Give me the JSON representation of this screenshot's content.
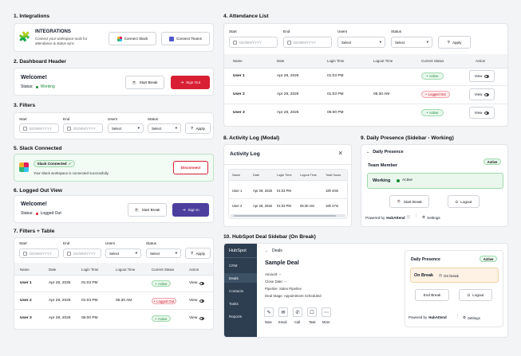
{
  "s1": {
    "title": "1. Integrations",
    "heading": "INTEGRATIONS",
    "desc1": "Connect your workspace tools for",
    "desc2": "attendance & status sync",
    "slack_btn": "Connect Slack",
    "teams_btn": "Connect Teams"
  },
  "s2": {
    "title": "2. Dashboard Header",
    "welcome": "Welcome!",
    "status_label": "Status:",
    "status_value": "Working",
    "start_break": "Start Break",
    "sign_out": "Sign Out"
  },
  "s3": {
    "title": "3. Filters",
    "start": "Start",
    "end": "End",
    "users": "Users",
    "status": "Status",
    "date_ph": "DD/MM/YYYY",
    "select": "Select",
    "apply": "Apply"
  },
  "s5": {
    "title": "5. Slack Connected",
    "badge": "Slack Connected",
    "msg": "Your Slack workspace is connected successfully.",
    "disconnect": "Disconnect"
  },
  "s6": {
    "title": "6. Logged Out View",
    "welcome": "Welcome!",
    "status_label": "Status:",
    "status_value": "Logged Out",
    "start_break": "Start Break",
    "sign_in": "Sign In"
  },
  "s7": {
    "title": "7. Filters + Table"
  },
  "s4": {
    "title": "4. Attendance List"
  },
  "table": {
    "headers": [
      "Name",
      "Date",
      "Login Time",
      "Logout Time",
      "Current Status",
      "Action"
    ],
    "rows": [
      {
        "name": "User 1",
        "date": "Apr 28, 2026",
        "login": "01:03 PM",
        "logout": "",
        "status": "Active",
        "action": "View"
      },
      {
        "name": "User 2",
        "date": "Apr 28, 2026",
        "login": "01:03 PM",
        "logout": "05:30 AM",
        "status": "Logged Out",
        "action": "View"
      },
      {
        "name": "User 3",
        "date": "Apr 28, 2026",
        "login": "06:00 PM",
        "logout": "",
        "status": "Active",
        "action": "View"
      }
    ]
  },
  "s8": {
    "title": "8. Activity Log (Modal)",
    "modal_title": "Activity Log",
    "headers": [
      "Name",
      "Date",
      "Login Time",
      "Logout Time",
      "Total Hours"
    ],
    "rows": [
      {
        "name": "User 1",
        "date": "Apr 28, 2026",
        "login": "01:03 PM",
        "logout": "",
        "total": "18h 40m"
      },
      {
        "name": "User 2",
        "date": "Apr 28, 2026",
        "login": "01:03 PM",
        "logout": "05:30 AM",
        "total": "16h 27m"
      }
    ]
  },
  "s9": {
    "title": "9. Daily Presence (Sidebar - Working)",
    "heading": "Daily Presence",
    "active": "Active",
    "member": "Team Member",
    "working": "Working",
    "working_badge": "Active",
    "start_break": "Start Break",
    "logout": "Logout",
    "powered": "Powered by",
    "brand": "HubAttend",
    "settings": "Settings"
  },
  "s10": {
    "title": "10. HubSpot Deal Sidebar (On Break)",
    "nav_brand": "HubSpot",
    "nav": [
      "CRM",
      "Deals",
      "Contacts",
      "Tasks",
      "Reports"
    ],
    "back": "Deals",
    "deal": "Sample Deal",
    "amount": "Amount: --",
    "close": "Close Date: --",
    "pipeline": "Pipeline: Sales Pipeline",
    "stage": "Deal Stage: Appointment Scheduled",
    "actions": [
      "Note",
      "Email",
      "Call",
      "Task",
      "More"
    ],
    "dp_heading": "Daily Presence",
    "dp_active": "Active",
    "on_break": "On Break",
    "on_break_badge": "On break",
    "end_break": "End Break",
    "logout": "Logout",
    "powered": "Powered by",
    "brand": "HubAttend",
    "settings": "Settings"
  },
  "colors": {
    "red": "#d81f33",
    "purple": "#4c3f9e",
    "green": "#1a8a3a",
    "hubspot_nav": "#2d3e50"
  }
}
